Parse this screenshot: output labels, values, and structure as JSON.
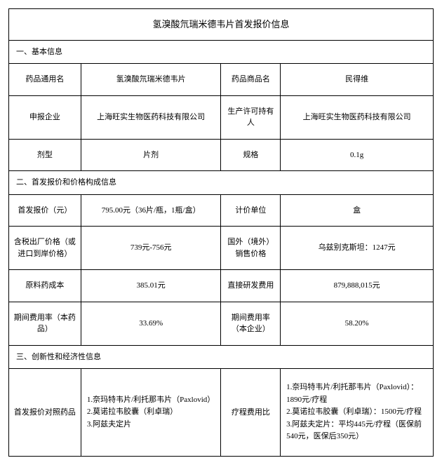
{
  "title": "氢溴酸氘瑞米德韦片首发报价信息",
  "sections": {
    "s1": "一、基本信息",
    "s2": "二、首发报价和价格构成信息",
    "s3": "三、创新性和经济性信息"
  },
  "basic": {
    "generic_name_label": "药品通用名",
    "generic_name_value": "氢溴酸氘瑞米德韦片",
    "trade_name_label": "药品商品名",
    "trade_name_value": "民得维",
    "applicant_label": "申报企业",
    "applicant_value": "上海旺实生物医药科技有限公司",
    "holder_label": "生产许可持有人",
    "holder_value": "上海旺实生物医药科技有限公司",
    "dosage_form_label": "剂型",
    "dosage_form_value": "片剂",
    "spec_label": "规格",
    "spec_value": "0.1g"
  },
  "price": {
    "first_price_label": "首发报价（元）",
    "first_price_value": "795.00元（36片/瓶，1瓶/盒）",
    "unit_label": "计价单位",
    "unit_value": "盒",
    "factory_price_label": "含税出厂价格（或进口到岸价格）",
    "factory_price_value": "739元-756元",
    "overseas_label": "国外（境外）销售价格",
    "overseas_value": "乌兹别克斯坦：1247元",
    "api_cost_label": "原料药成本",
    "api_cost_value": "385.01元",
    "rd_cost_label": "直接研发费用",
    "rd_cost_value": "879,888,015元",
    "period_rate_drug_label": "期间费用率（本药品）",
    "period_rate_drug_value": "33.69%",
    "period_rate_ent_label": "期间费用率（本企业）",
    "period_rate_ent_value": "58.20%"
  },
  "innovation": {
    "comparator_label": "首发报价对照药品",
    "comparator_value": "1.奈玛特韦片/利托那韦片（Paxlovid）\n2.莫诺拉韦胶囊（利卓瑞）\n3.阿兹夫定片",
    "course_label": "疗程费用比",
    "course_value": "1.奈玛特韦片/利托那韦片（Paxlovid）：1890元/疗程\n2.莫诺拉韦胶囊（利卓瑞）：1500元/疗程\n3.阿兹夫定片：平均445元/疗程（医保前540元，医保后350元）"
  }
}
